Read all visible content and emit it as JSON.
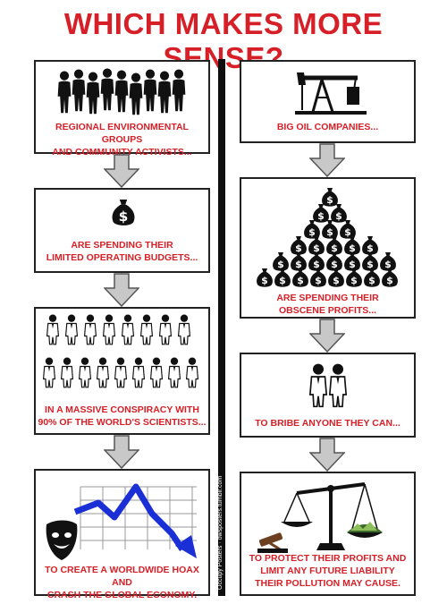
{
  "title": "WHICH MAKES MORE SENSE?",
  "side_credit": "Occupy Posters · owsposters.tumblr.com",
  "colors": {
    "title_red": "#d61f26",
    "caption_red": "#d61f26",
    "arrow_fill": "#c8c8c8",
    "chart_line_blue": "#1b2fd6"
  },
  "left_column": [
    {
      "icon": "crowd-of-people-silhouettes",
      "lines": [
        "REGIONAL ENVIRONMENTAL GROUPS",
        "AND COMMUNITY ACTIVISTS..."
      ]
    },
    {
      "icon": "money-bag-icon",
      "lines": [
        "ARE SPENDING THEIR",
        "LIMITED OPERATING BUDGETS..."
      ]
    },
    {
      "icon": "scientists-in-lab-coats",
      "lines": [
        "IN A MASSIVE CONSPIRACY WITH",
        "90% OF THE WORLD'S SCIENTISTS..."
      ]
    },
    {
      "icon": "theater-mask-and-falling-chart",
      "lines": [
        "TO CREATE A WORLDWIDE HOAX AND",
        "CRASH THE GLOBAL ECONOMY."
      ]
    }
  ],
  "right_column": [
    {
      "icon": "oil-pump-jack-icon",
      "lines": [
        "BIG OIL COMPANIES..."
      ]
    },
    {
      "icon": "pile-of-money-bags",
      "lines": [
        "ARE SPENDING THEIR",
        "OBSCENE PROFITS..."
      ]
    },
    {
      "icon": "two-scientists-icon",
      "lines": [
        "TO BRIBE ANYONE THEY CAN..."
      ]
    },
    {
      "icon": "scales-of-justice-with-gavel",
      "lines": [
        "TO PROTECT THEIR PROFITS AND",
        "LIMIT ANY FUTURE LIABILITY",
        "THEIR POLLUTION MAY CAUSE."
      ]
    }
  ]
}
